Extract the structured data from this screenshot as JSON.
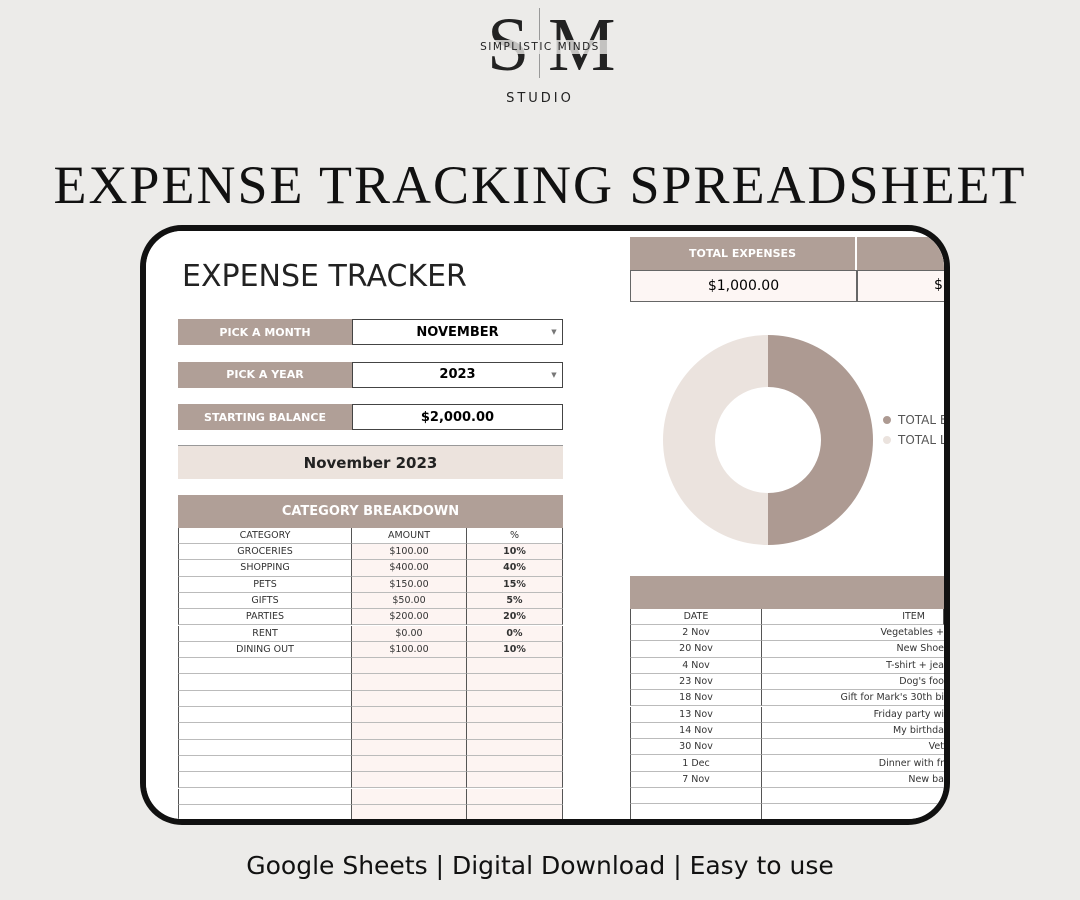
{
  "brand": {
    "monogram": "SM",
    "name": "SIMPLISTIC MINDS",
    "studio": "STUDIO"
  },
  "title": "EXPENSE TRACKING SPREADSHEET",
  "sheet": {
    "title": "EXPENSE TRACKER",
    "fields": [
      {
        "label": "PICK A MONTH",
        "value": "NOVEMBER"
      },
      {
        "label": "PICK A YEAR",
        "value": "2023"
      },
      {
        "label": "STARTING BALANCE",
        "value": "$2,000.00"
      }
    ],
    "period": "November 2023",
    "breakdown": {
      "title": "CATEGORY BREAKDOWN",
      "columns": [
        "CATEGORY",
        "AMOUNT",
        "%"
      ],
      "rows": [
        [
          "GROCERIES",
          "$100.00",
          "10%"
        ],
        [
          "SHOPPING",
          "$400.00",
          "40%"
        ],
        [
          "PETS",
          "$150.00",
          "15%"
        ],
        [
          "GIFTS",
          "$50.00",
          "5%"
        ],
        [
          "PARTIES",
          "$200.00",
          "20%"
        ],
        [
          "RENT",
          "$0.00",
          "0%"
        ],
        [
          "DINING OUT",
          "$100.00",
          "10%"
        ]
      ]
    },
    "totals": {
      "label": "TOTAL EXPENSES",
      "value": "$1,000.00",
      "next_value": "$"
    },
    "donut": {
      "values": [
        50,
        50
      ],
      "colors": [
        "#ad9a92",
        "#ebe3de"
      ],
      "legend": [
        "TOTAL E",
        "TOTAL L"
      ]
    },
    "transactions": {
      "columns": [
        "DATE",
        "ITEM"
      ],
      "rows": [
        [
          "2 Nov",
          "Vegetables +"
        ],
        [
          "20 Nov",
          "New Shoe"
        ],
        [
          "4 Nov",
          "T-shirt + jea"
        ],
        [
          "23 Nov",
          "Dog's foo"
        ],
        [
          "18 Nov",
          "Gift for Mark's 30th bi"
        ],
        [
          "13 Nov",
          "Friday party wi"
        ],
        [
          "14 Nov",
          "My birthda"
        ],
        [
          "30 Nov",
          "Vet"
        ],
        [
          "1 Dec",
          "Dinner with fr"
        ],
        [
          "7 Nov",
          "New ba"
        ]
      ]
    }
  },
  "footer": "Google Sheets | Digital Download | Easy to use"
}
